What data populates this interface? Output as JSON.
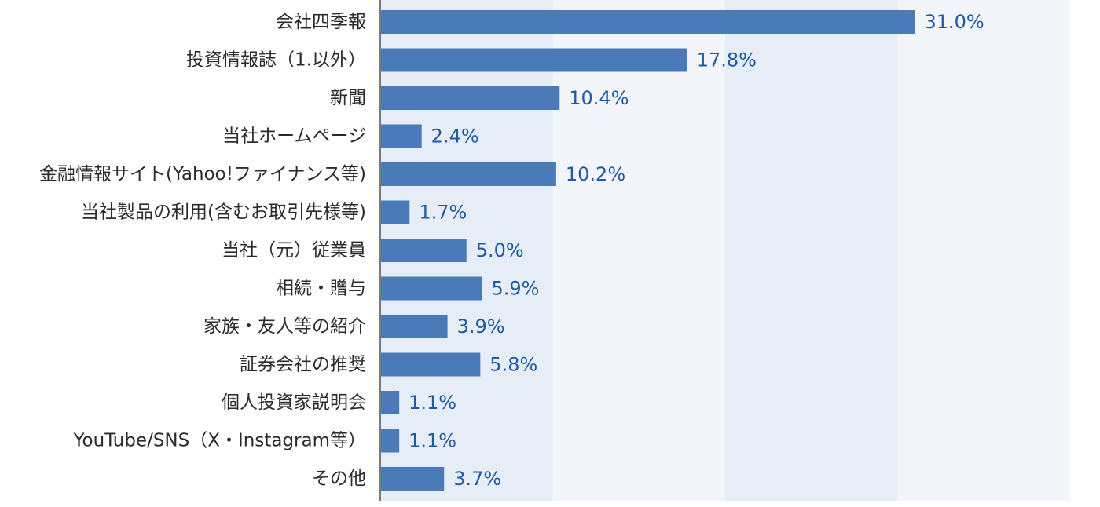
{
  "chart_data": {
    "type": "bar",
    "orientation": "horizontal",
    "categories": [
      "会社四季報",
      "投資情報誌（1.以外）",
      "新聞",
      "当社ホームページ",
      "金融情報サイト(Yahoo!ファイナンス等)",
      "当社製品の利用(含むお取引先様等)",
      "当社（元）従業員",
      "相続・贈与",
      "家族・友人等の紹介",
      "証券会社の推奨",
      "個人投資家説明会",
      "YouTube/SNS（X・Instagram等）",
      "その他"
    ],
    "values": [
      31.0,
      17.8,
      10.4,
      2.4,
      10.2,
      1.7,
      5.0,
      5.9,
      3.9,
      5.8,
      1.1,
      1.1,
      3.7
    ],
    "value_labels": [
      "31.0%",
      "17.8%",
      "10.4%",
      "2.4%",
      "10.2%",
      "1.7%",
      "5.0%",
      "5.9%",
      "3.9%",
      "5.8%",
      "1.1%",
      "1.1%",
      "3.7%"
    ],
    "xlim": [
      0,
      40
    ],
    "grid": "alternating vertical bands",
    "bar_color": "#4a7ab8",
    "label_color": "#1f5aa6",
    "band_colors": [
      "#e6edf6",
      "#f2f6fb"
    ],
    "axis_color": "#7a7a7a"
  }
}
